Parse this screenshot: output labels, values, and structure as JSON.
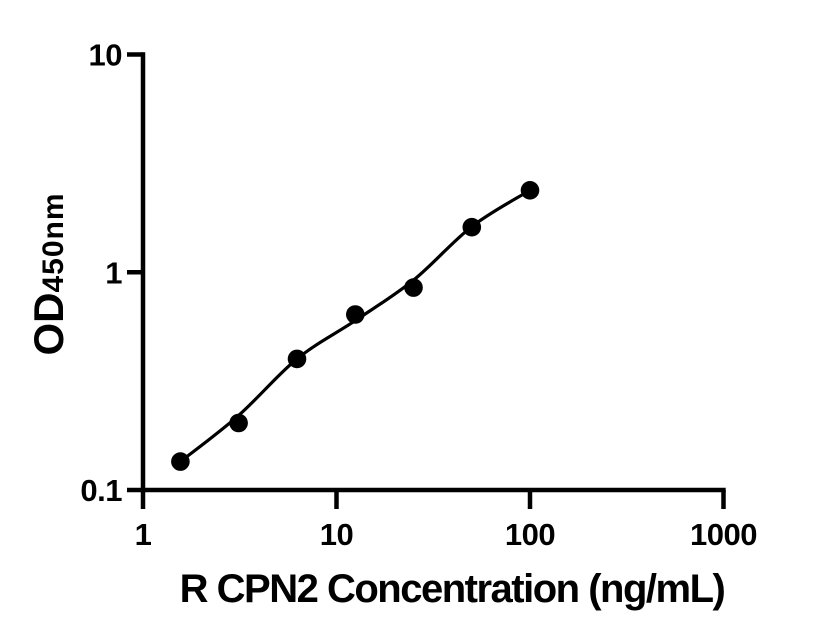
{
  "figure": {
    "background_color": "#ffffff",
    "ink_color": "#000000"
  },
  "chart_data": {
    "type": "scatter",
    "title": "",
    "xlabel": "R CPN2 Concentration (ng/mL)",
    "ylabel_main": "OD",
    "ylabel_sub": "450nm",
    "x_scale": "log",
    "y_scale": "log",
    "xlim": [
      1,
      1000
    ],
    "ylim": [
      0.1,
      10
    ],
    "grid": false,
    "legend": null,
    "marker_color": "#000000",
    "line_color": "#000000",
    "axis_color": "#000000",
    "x_ticks": [
      {
        "value": 1,
        "label": "1"
      },
      {
        "value": 10,
        "label": "10"
      },
      {
        "value": 100,
        "label": "100"
      },
      {
        "value": 1000,
        "label": "1000"
      }
    ],
    "y_ticks": [
      {
        "value": 0.1,
        "label": "0.1"
      },
      {
        "value": 1,
        "label": "1"
      },
      {
        "value": 10,
        "label": "10"
      }
    ],
    "points": [
      {
        "x": 1.56,
        "od": 0.135
      },
      {
        "x": 3.12,
        "od": 0.203
      },
      {
        "x": 6.25,
        "od": 0.4
      },
      {
        "x": 12.5,
        "od": 0.64
      },
      {
        "x": 25,
        "od": 0.85
      },
      {
        "x": 50,
        "od": 1.61
      },
      {
        "x": 100,
        "od": 2.38
      }
    ],
    "fit_line": [
      {
        "x": 1.56,
        "od": 0.135
      },
      {
        "x": 3.12,
        "od": 0.22
      },
      {
        "x": 6.25,
        "od": 0.4
      },
      {
        "x": 12.5,
        "od": 0.6
      },
      {
        "x": 25,
        "od": 0.92
      },
      {
        "x": 50,
        "od": 1.62
      },
      {
        "x": 100,
        "od": 2.38
      }
    ]
  }
}
